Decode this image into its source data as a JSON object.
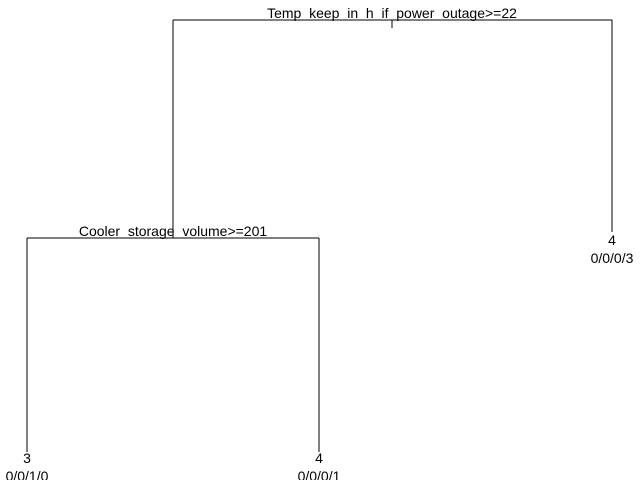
{
  "tree": {
    "root_split": {
      "label": "Temp_keep_in_h_if_power_outage>=22",
      "display": "Temp  keep  in  h  if  power  outage>=22"
    },
    "child_split": {
      "label": "Cooler_storage_volume>=201",
      "display": "Cooler  storage  volume>=201"
    },
    "leaves": [
      {
        "class": "3",
        "counts": "0/0/1/0"
      },
      {
        "class": "4",
        "counts": "0/0/0/1"
      },
      {
        "class": "4",
        "counts": "0/0/0/3"
      }
    ]
  }
}
